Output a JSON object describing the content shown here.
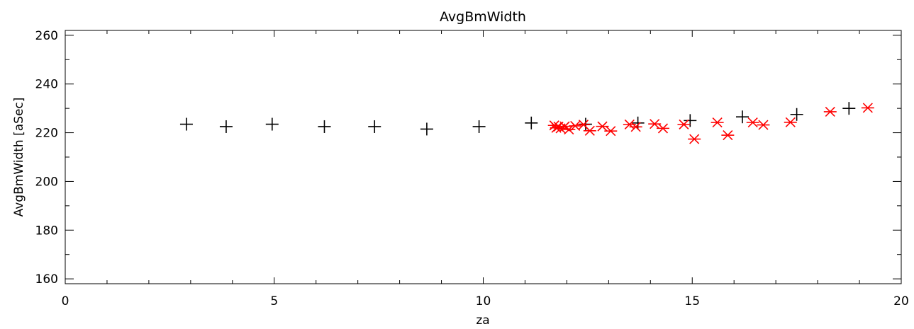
{
  "chart_data": {
    "type": "scatter",
    "title": "AvgBmWidth",
    "xlabel": "za",
    "ylabel": "AvgBmWidth [aSec]",
    "xlim": [
      0,
      20
    ],
    "ylim": [
      158,
      262
    ],
    "x_ticks": [
      0,
      5,
      10,
      15,
      20
    ],
    "y_ticks": [
      160,
      180,
      200,
      220,
      240,
      260
    ],
    "grid": false,
    "series": [
      {
        "marker": "plus",
        "color": "#000000",
        "points": [
          [
            2.9,
            223.5
          ],
          [
            3.85,
            222.5
          ],
          [
            4.95,
            223.5
          ],
          [
            6.2,
            222.5
          ],
          [
            7.4,
            222.5
          ],
          [
            8.65,
            221.5
          ],
          [
            9.9,
            222.5
          ],
          [
            11.15,
            224.0
          ],
          [
            12.45,
            223.5
          ],
          [
            13.7,
            224.0
          ],
          [
            14.95,
            225.0
          ],
          [
            16.2,
            226.5
          ],
          [
            17.5,
            227.5
          ],
          [
            18.75,
            230.0
          ]
        ]
      },
      {
        "marker": "asterisk",
        "color": "#ff0000",
        "points": [
          [
            11.7,
            223.0
          ],
          [
            11.75,
            222.0
          ],
          [
            11.8,
            222.5
          ],
          [
            11.85,
            221.8
          ],
          [
            11.95,
            222.6
          ],
          [
            12.05,
            221.3
          ],
          [
            12.2,
            222.8
          ],
          [
            12.4,
            223.3
          ],
          [
            12.55,
            220.8
          ],
          [
            12.85,
            222.6
          ],
          [
            13.05,
            220.7
          ],
          [
            13.5,
            223.4
          ],
          [
            13.65,
            222.4
          ],
          [
            14.1,
            223.6
          ],
          [
            14.3,
            221.8
          ],
          [
            14.8,
            223.4
          ],
          [
            15.05,
            217.4
          ],
          [
            15.6,
            224.2
          ],
          [
            15.85,
            219.0
          ],
          [
            16.45,
            224.2
          ],
          [
            16.7,
            223.2
          ],
          [
            17.35,
            224.3
          ],
          [
            18.3,
            228.6
          ],
          [
            19.2,
            230.2
          ]
        ]
      }
    ]
  }
}
